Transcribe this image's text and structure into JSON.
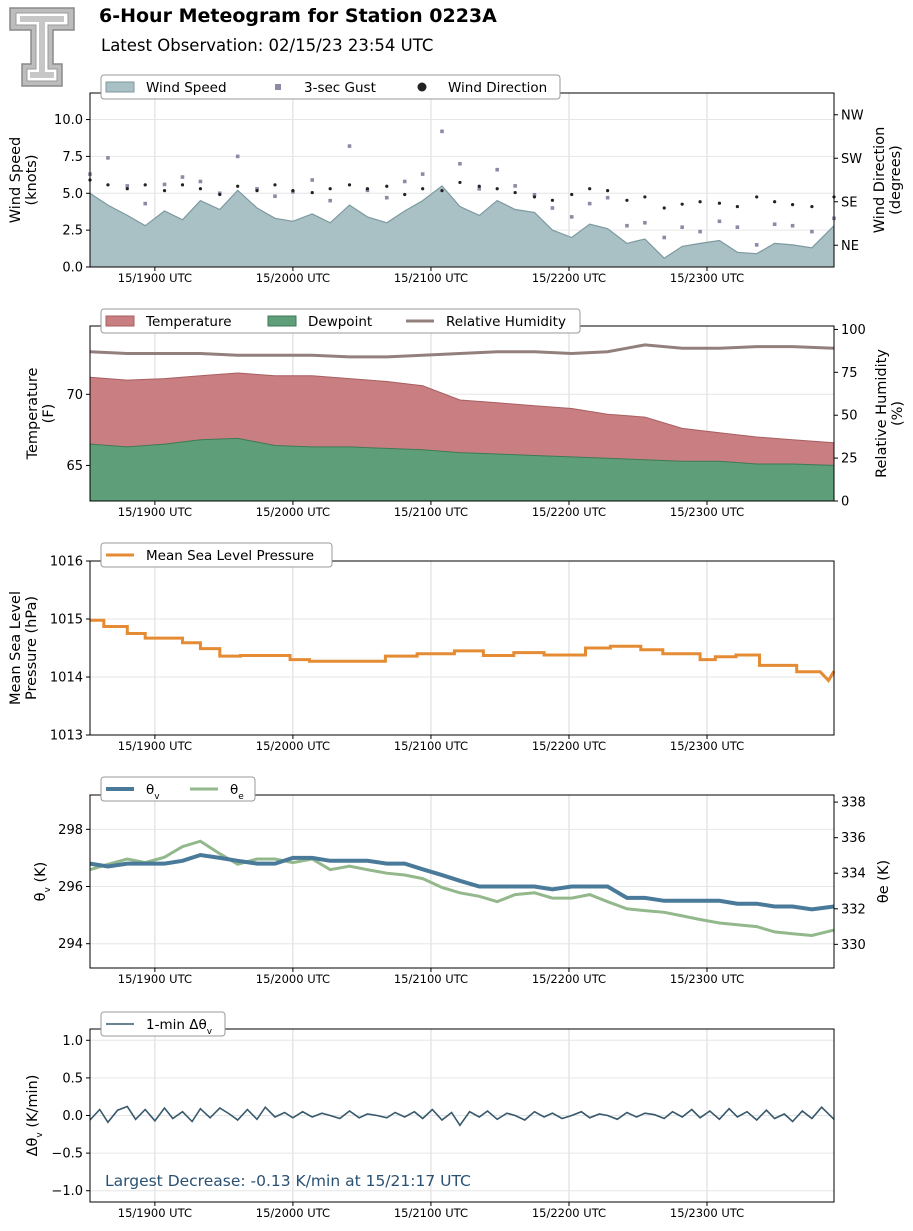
{
  "header": {
    "title": "6-Hour Meteogram for Station 0223A",
    "subtitle": "Latest Observation: 02/15/23 23:54 UTC",
    "logo": "texas-tech-double-t-logo"
  },
  "x_ticks": [
    "15/1900 UTC",
    "15/2000 UTC",
    "15/2100 UTC",
    "15/2200 UTC",
    "15/2300 UTC"
  ],
  "colors": {
    "wind_speed": "#a9c0c5",
    "wind_speed_line": "#7c9aa0",
    "gust": "#8e8aa6",
    "direction": "#222222",
    "temperature": "#c97f81",
    "dewpoint": "#5e9e79",
    "rh": "#93807d",
    "pressure": "#e58b34",
    "theta_v": "#4a7a99",
    "theta_e": "#93b88c",
    "dtheta": "#37596b",
    "annotation": "#2a5173"
  },
  "chart_data": [
    {
      "type": "area",
      "name": "wind",
      "legend": [
        "Wind Speed",
        "3-sec Gust",
        "Wind Direction"
      ],
      "ylabel": "Wind Speed\n(knots)",
      "ylim": [
        0,
        11.8
      ],
      "yticks": [
        "0.0",
        "2.5",
        "5.0",
        "7.5",
        "10.0"
      ],
      "ytick_values": [
        0,
        2.5,
        5,
        7.5,
        10
      ],
      "y2label": "Wind Direction\n(degrees)",
      "y2ticks": [
        "NE",
        "SE",
        "SW",
        "NW"
      ],
      "y2tick_values": [
        45,
        135,
        225,
        315
      ],
      "y2lim": [
        0,
        360
      ],
      "xlim": [
        18.53,
        23.92
      ],
      "x": [
        18.53,
        18.66,
        18.8,
        18.93,
        19.07,
        19.2,
        19.33,
        19.47,
        19.6,
        19.74,
        19.87,
        20.0,
        20.14,
        20.27,
        20.41,
        20.54,
        20.68,
        20.81,
        20.94,
        21.08,
        21.21,
        21.35,
        21.48,
        21.61,
        21.75,
        21.88,
        22.02,
        22.15,
        22.28,
        22.42,
        22.55,
        22.69,
        22.82,
        22.95,
        23.09,
        23.22,
        23.36,
        23.49,
        23.62,
        23.76,
        23.92
      ],
      "wind_speed": [
        5.0,
        4.2,
        3.5,
        2.8,
        3.8,
        3.2,
        4.5,
        3.9,
        5.2,
        4.0,
        3.3,
        3.1,
        3.6,
        3.0,
        4.2,
        3.4,
        3.0,
        3.8,
        4.5,
        5.5,
        4.1,
        3.5,
        4.5,
        3.9,
        3.7,
        2.5,
        2.0,
        2.9,
        2.6,
        1.6,
        1.9,
        0.6,
        1.4,
        1.6,
        1.8,
        1.0,
        0.9,
        1.6,
        1.5,
        1.3,
        2.8
      ],
      "gust": [
        6.3,
        7.4,
        5.5,
        4.3,
        5.6,
        6.1,
        5.8,
        5.0,
        7.5,
        5.3,
        4.8,
        5.1,
        5.9,
        4.5,
        8.2,
        5.2,
        4.7,
        5.8,
        6.3,
        9.2,
        7.0,
        5.3,
        6.6,
        5.5,
        4.9,
        4.0,
        3.4,
        4.3,
        4.7,
        2.8,
        3.0,
        2.0,
        2.7,
        2.4,
        3.1,
        2.7,
        1.5,
        2.9,
        2.8,
        2.4,
        3.3
      ],
      "direction": [
        180,
        170,
        162,
        170,
        158,
        170,
        162,
        150,
        167,
        158,
        170,
        158,
        154,
        162,
        170,
        162,
        167,
        150,
        162,
        158,
        175,
        167,
        162,
        154,
        145,
        138,
        150,
        162,
        158,
        138,
        145,
        122,
        130,
        135,
        132,
        125,
        145,
        135,
        129,
        125,
        145
      ]
    },
    {
      "type": "area",
      "name": "temperature",
      "legend": [
        "Temperature",
        "Dewpoint",
        "Relative Humidity"
      ],
      "ylabel": "Temperature\n(F)",
      "ylim": [
        62.5,
        74.8
      ],
      "yticks": [
        "65",
        "70"
      ],
      "ytick_values": [
        65,
        70
      ],
      "y2label": "Relative Humidity\n(%)",
      "y2ticks": [
        "0",
        "25",
        "50",
        "75",
        "100"
      ],
      "y2tick_values": [
        0,
        25,
        50,
        75,
        100
      ],
      "y2lim": [
        0,
        102
      ],
      "x": [
        18.53,
        18.8,
        19.07,
        19.33,
        19.6,
        19.87,
        20.14,
        20.41,
        20.68,
        20.94,
        21.21,
        21.48,
        21.75,
        22.02,
        22.28,
        22.55,
        22.82,
        23.09,
        23.36,
        23.62,
        23.92
      ],
      "temperature": [
        71.2,
        71.0,
        71.1,
        71.3,
        71.5,
        71.3,
        71.3,
        71.1,
        70.9,
        70.6,
        69.6,
        69.4,
        69.2,
        69.0,
        68.6,
        68.4,
        67.6,
        67.3,
        67.0,
        66.8,
        66.6
      ],
      "dewpoint": [
        66.5,
        66.3,
        66.5,
        66.8,
        66.9,
        66.4,
        66.3,
        66.3,
        66.2,
        66.1,
        65.9,
        65.8,
        65.7,
        65.6,
        65.5,
        65.4,
        65.3,
        65.3,
        65.1,
        65.1,
        65.0
      ],
      "rh": [
        87,
        86,
        86,
        86,
        85,
        85,
        85,
        84,
        84,
        85,
        86,
        87,
        87,
        86,
        87,
        91,
        89,
        89,
        90,
        90,
        89
      ]
    },
    {
      "type": "line",
      "name": "pressure",
      "legend": [
        "Mean Sea Level Pressure"
      ],
      "ylabel": "Mean Sea Level\nPressure (hPa)",
      "ylim": [
        1013,
        1016
      ],
      "yticks": [
        "1013",
        "1014",
        "1015",
        "1016"
      ],
      "ytick_values": [
        1013,
        1014,
        1015,
        1016
      ],
      "x": [
        18.53,
        18.63,
        18.63,
        18.8,
        18.8,
        18.93,
        18.93,
        19.2,
        19.2,
        19.33,
        19.33,
        19.47,
        19.47,
        19.62,
        19.62,
        19.98,
        19.98,
        20.12,
        20.12,
        20.67,
        20.67,
        20.9,
        20.9,
        21.17,
        21.17,
        21.38,
        21.38,
        21.6,
        21.6,
        21.82,
        21.82,
        22.12,
        22.12,
        22.3,
        22.3,
        22.52,
        22.52,
        22.68,
        22.68,
        22.95,
        22.95,
        23.06,
        23.06,
        23.21,
        23.21,
        23.38,
        23.38,
        23.65,
        23.65,
        23.82,
        23.88,
        23.92
      ],
      "pressure": [
        1014.98,
        1014.98,
        1014.87,
        1014.87,
        1014.75,
        1014.75,
        1014.67,
        1014.67,
        1014.59,
        1014.59,
        1014.49,
        1014.49,
        1014.36,
        1014.36,
        1014.37,
        1014.37,
        1014.3,
        1014.3,
        1014.27,
        1014.27,
        1014.36,
        1014.36,
        1014.4,
        1014.4,
        1014.45,
        1014.45,
        1014.37,
        1014.37,
        1014.42,
        1014.42,
        1014.38,
        1014.38,
        1014.5,
        1014.5,
        1014.53,
        1014.53,
        1014.47,
        1014.47,
        1014.4,
        1014.4,
        1014.3,
        1014.3,
        1014.35,
        1014.35,
        1014.38,
        1014.38,
        1014.2,
        1014.2,
        1014.09,
        1014.09,
        1013.94,
        1014.1
      ]
    },
    {
      "type": "line",
      "name": "theta",
      "legend": [
        "θv",
        "θe"
      ],
      "ylabel": "θv (K)",
      "ylim": [
        293.15,
        299.2
      ],
      "yticks": [
        "294",
        "296",
        "298"
      ],
      "ytick_values": [
        294,
        296,
        298
      ],
      "y2label": "θe (K)",
      "y2ticks": [
        "330",
        "332",
        "334",
        "336",
        "338"
      ],
      "y2tick_values": [
        330,
        332,
        334,
        336,
        338
      ],
      "y2lim": [
        328.67,
        338.4
      ],
      "x": [
        18.53,
        18.66,
        18.8,
        18.93,
        19.07,
        19.2,
        19.33,
        19.47,
        19.6,
        19.74,
        19.87,
        20.0,
        20.14,
        20.27,
        20.41,
        20.54,
        20.68,
        20.81,
        20.94,
        21.08,
        21.21,
        21.35,
        21.48,
        21.61,
        21.75,
        21.88,
        22.02,
        22.15,
        22.28,
        22.42,
        22.55,
        22.69,
        22.82,
        22.95,
        23.09,
        23.22,
        23.36,
        23.49,
        23.62,
        23.76,
        23.92
      ],
      "theta_v": [
        296.8,
        296.7,
        296.8,
        296.8,
        296.8,
        296.9,
        297.1,
        297.0,
        296.9,
        296.8,
        296.8,
        297.0,
        297.0,
        296.9,
        296.9,
        296.9,
        296.8,
        296.8,
        296.6,
        296.4,
        296.2,
        296.0,
        296.0,
        296.0,
        296.0,
        295.9,
        296.0,
        296.0,
        296.0,
        295.6,
        295.6,
        295.5,
        295.5,
        295.5,
        295.5,
        295.4,
        295.4,
        295.3,
        295.3,
        295.2,
        295.3
      ],
      "theta_e": [
        334.2,
        334.5,
        334.8,
        334.6,
        334.9,
        335.5,
        335.8,
        335.1,
        334.5,
        334.8,
        334.8,
        334.6,
        334.8,
        334.2,
        334.4,
        334.2,
        334.0,
        333.9,
        333.7,
        333.2,
        332.9,
        332.7,
        332.4,
        332.8,
        332.9,
        332.6,
        332.6,
        332.8,
        332.4,
        332.0,
        331.9,
        331.8,
        331.6,
        331.4,
        331.2,
        331.1,
        331.0,
        330.7,
        330.6,
        330.5,
        330.8
      ]
    },
    {
      "type": "line",
      "name": "dtheta",
      "legend": [
        "1-min Δθv"
      ],
      "ylabel": "Δθv (K/min)",
      "ylim": [
        -1.15,
        1.15
      ],
      "yticks": [
        "−1.0",
        "−0.5",
        "0.0",
        "0.5",
        "1.0"
      ],
      "ytick_values": [
        -1,
        -0.5,
        0,
        0.5,
        1
      ],
      "x": [
        18.53,
        18.6,
        18.66,
        18.73,
        18.8,
        18.86,
        18.93,
        19.0,
        19.07,
        19.13,
        19.2,
        19.27,
        19.33,
        19.4,
        19.47,
        19.54,
        19.6,
        19.67,
        19.74,
        19.8,
        19.87,
        19.94,
        20.0,
        20.07,
        20.14,
        20.21,
        20.27,
        20.34,
        20.41,
        20.48,
        20.54,
        20.61,
        20.68,
        20.74,
        20.81,
        20.88,
        20.94,
        21.01,
        21.08,
        21.15,
        21.21,
        21.28,
        21.35,
        21.41,
        21.48,
        21.55,
        21.61,
        21.68,
        21.75,
        21.82,
        21.88,
        21.95,
        22.02,
        22.09,
        22.15,
        22.22,
        22.28,
        22.35,
        22.42,
        22.49,
        22.55,
        22.62,
        22.69,
        22.75,
        22.82,
        22.89,
        22.95,
        23.02,
        23.09,
        23.16,
        23.22,
        23.29,
        23.36,
        23.43,
        23.49,
        23.56,
        23.62,
        23.69,
        23.76,
        23.83,
        23.92
      ],
      "values": [
        -0.06,
        0.08,
        -0.09,
        0.07,
        0.12,
        -0.05,
        0.08,
        -0.07,
        0.1,
        -0.04,
        0.05,
        -0.08,
        0.09,
        -0.03,
        0.1,
        0.02,
        -0.06,
        0.08,
        -0.05,
        0.11,
        -0.02,
        0.04,
        -0.03,
        0.05,
        -0.02,
        0.03,
        0.0,
        -0.04,
        0.06,
        -0.03,
        0.02,
        0.0,
        -0.03,
        0.04,
        -0.02,
        0.05,
        -0.04,
        0.08,
        -0.06,
        0.04,
        -0.13,
        0.05,
        -0.02,
        0.06,
        -0.05,
        0.03,
        0.0,
        -0.06,
        0.05,
        -0.02,
        0.03,
        -0.04,
        0.0,
        0.05,
        -0.03,
        0.02,
        0.0,
        -0.05,
        0.04,
        -0.02,
        0.03,
        0.01,
        -0.04,
        0.05,
        -0.02,
        0.08,
        -0.03,
        0.06,
        -0.05,
        0.09,
        -0.02,
        0.05,
        -0.06,
        0.07,
        -0.04,
        0.02,
        -0.08,
        0.06,
        -0.04,
        0.11,
        -0.05
      ],
      "annotation": "Largest Decrease: -0.13 K/min at 15/21:17 UTC"
    }
  ]
}
